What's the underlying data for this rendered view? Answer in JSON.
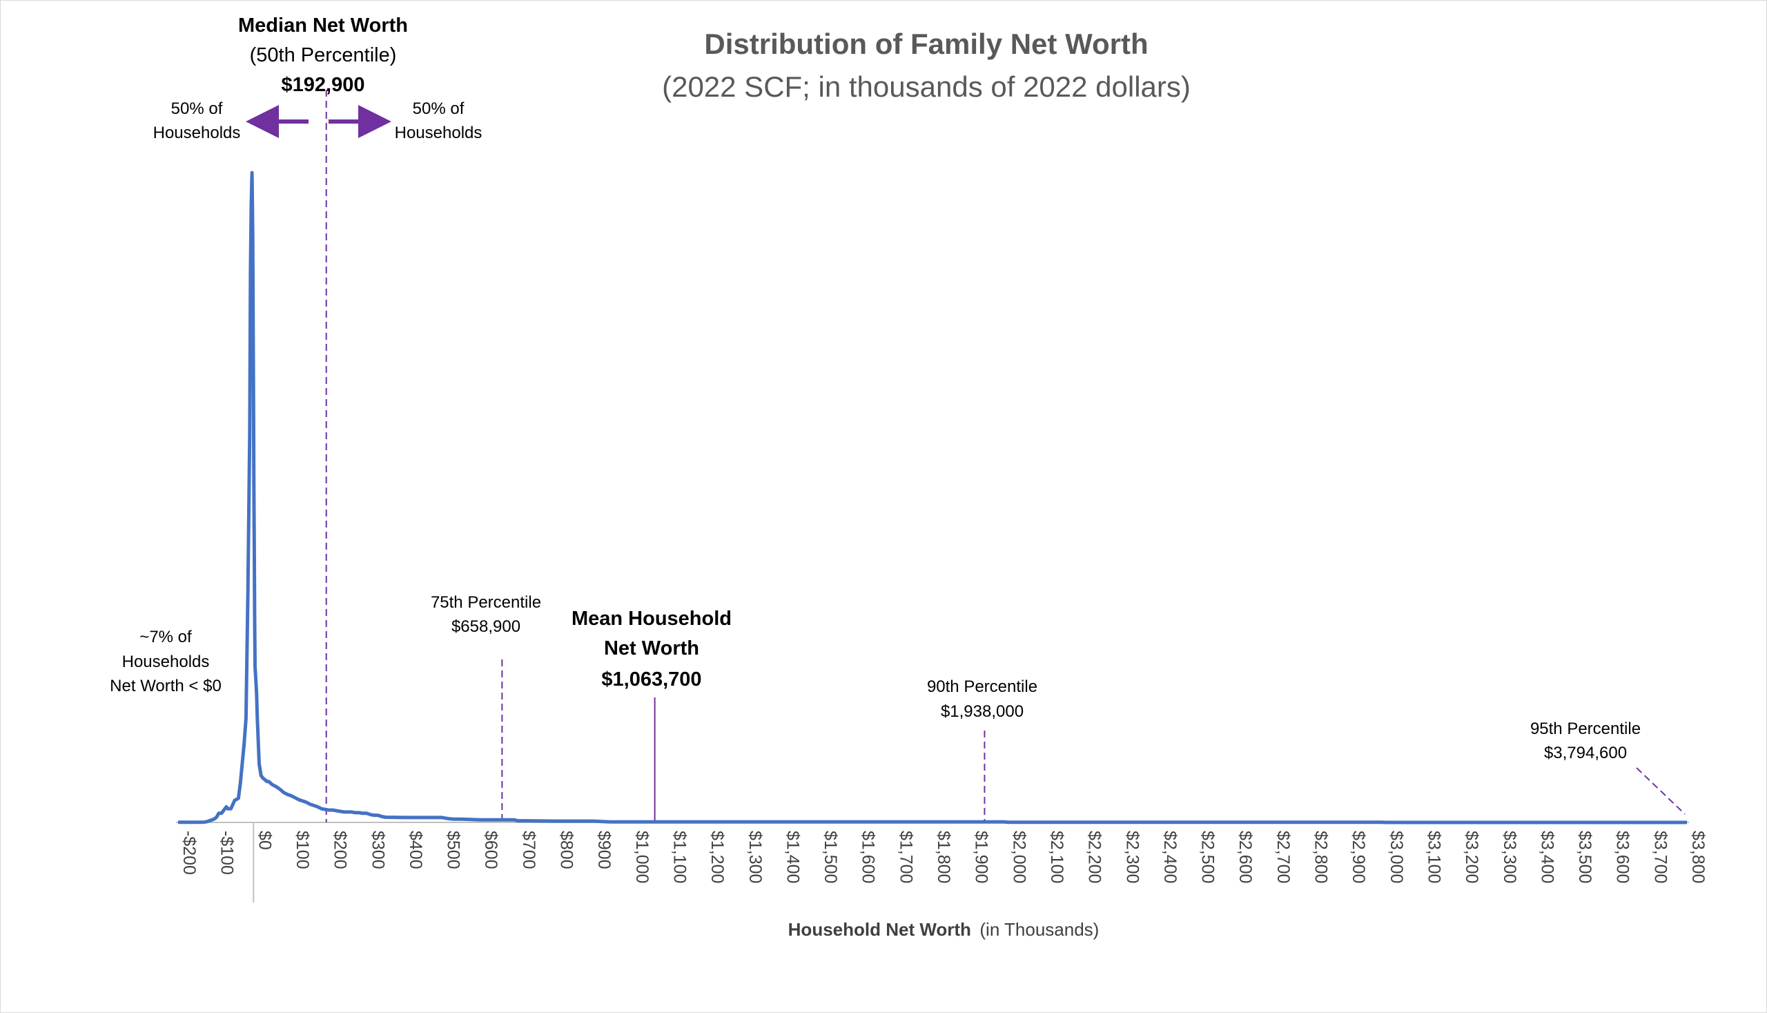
{
  "chart_data": {
    "type": "line",
    "title": "Distribution of Family Net Worth",
    "subtitle": "(2022 SCF; in thousands of 2022 dollars)",
    "xlabel": "Household Net Worth",
    "xlabel_suffix": "(in Thousands)",
    "ylabel": "",
    "xlim": [
      -200,
      3800
    ],
    "grid": false,
    "legend": "none",
    "line_color": "#4472c4",
    "marker_color": "#7030a0",
    "x_ticks": [
      "-$200",
      "-$100",
      "$0",
      "$100",
      "$200",
      "$300",
      "$400",
      "$500",
      "$600",
      "$700",
      "$800",
      "$900",
      "$1,000",
      "$1,100",
      "$1,200",
      "$1,300",
      "$1,400",
      "$1,500",
      "$1,600",
      "$1,700",
      "$1,800",
      "$1,900",
      "$2,000",
      "$2,100",
      "$2,200",
      "$2,300",
      "$2,400",
      "$2,500",
      "$2,600",
      "$2,700",
      "$2,800",
      "$2,900",
      "$3,000",
      "$3,100",
      "$3,200",
      "$3,300",
      "$3,400",
      "$3,500",
      "$3,600",
      "$3,700",
      "$3,800"
    ],
    "series": [
      {
        "x": [
          -200,
          -135,
          -125,
          -115,
          -105,
          -98,
          -92,
          -85,
          -72,
          -68,
          -60,
          -50,
          -40,
          -35,
          -30,
          -25,
          -20,
          -15,
          -10,
          -8,
          -6,
          -4,
          -2,
          0,
          1,
          2,
          3,
          4,
          6,
          8,
          10,
          15,
          20,
          25,
          30,
          35,
          40,
          50,
          60,
          70,
          80,
          90,
          100,
          110,
          120,
          130,
          140,
          150,
          160,
          170,
          180,
          190,
          200,
          210,
          220,
          230,
          240,
          250,
          260,
          270,
          280,
          290,
          300,
          310,
          320,
          330,
          340,
          350,
          400,
          450,
          500,
          510,
          520,
          530,
          540,
          550,
          600,
          650,
          690,
          700,
          710,
          800,
          900,
          940,
          950,
          1000,
          1010,
          1100,
          1200,
          1300,
          1400,
          1500,
          1600,
          1700,
          1800,
          1900,
          1990,
          2000,
          2010,
          2100,
          2500,
          2990,
          3000,
          3010,
          3500,
          3800
        ],
        "y": [
          0.2,
          0.2,
          1,
          3,
          5,
          8,
          14,
          14,
          24,
          21,
          21,
          34,
          37,
          60,
          90,
          120,
          160,
          350,
          600,
          850,
          950,
          1000,
          900,
          650,
          520,
          420,
          320,
          240,
          220,
          200,
          160,
          90,
          72,
          68,
          66,
          63,
          63,
          58,
          55,
          51,
          46,
          43,
          41,
          38,
          35,
          33,
          31,
          28,
          26,
          24,
          21,
          20,
          19,
          19,
          18,
          17,
          16,
          16,
          16,
          15,
          15,
          14,
          14,
          12,
          11,
          11,
          9,
          8,
          7.5,
          7.5,
          7.5,
          6.5,
          5.5,
          5,
          5,
          5,
          4,
          4,
          4,
          2.5,
          2.5,
          2,
          2,
          1,
          0.8,
          0.8,
          0.7,
          0.7,
          0.7,
          0.7,
          0.7,
          0.7,
          0.7,
          0.7,
          0.7,
          0.7,
          0.7,
          0.3,
          0.3,
          0.3,
          0.3,
          0.3,
          0.05,
          0.05,
          0.05,
          0.05
        ]
      }
    ],
    "markers": [
      {
        "x": 192.9,
        "style": "dashed",
        "label_lines": [
          "Median Net Worth",
          "(50th Percentile)",
          "$192,900"
        ]
      },
      {
        "x": 658.9,
        "style": "dashed",
        "label_lines": [
          "75th Percentile",
          "$658,900"
        ]
      },
      {
        "x": 1063.7,
        "style": "solid",
        "label_lines": [
          "Mean Household",
          "Net Worth",
          "$1,063,700"
        ]
      },
      {
        "x": 1938.0,
        "style": "dashed",
        "label_lines": [
          "90th Percentile",
          "$1,938,000"
        ]
      },
      {
        "x": 3794.6,
        "style": "dashed",
        "label_lines": [
          "95th Percentile",
          "$3,794,600"
        ]
      }
    ],
    "annotations": {
      "left_half": [
        "50% of",
        "Households"
      ],
      "right_half": [
        "50% of",
        "Households"
      ],
      "negative_share": [
        "~7% of",
        "Households",
        "Net Worth < $0"
      ]
    }
  }
}
